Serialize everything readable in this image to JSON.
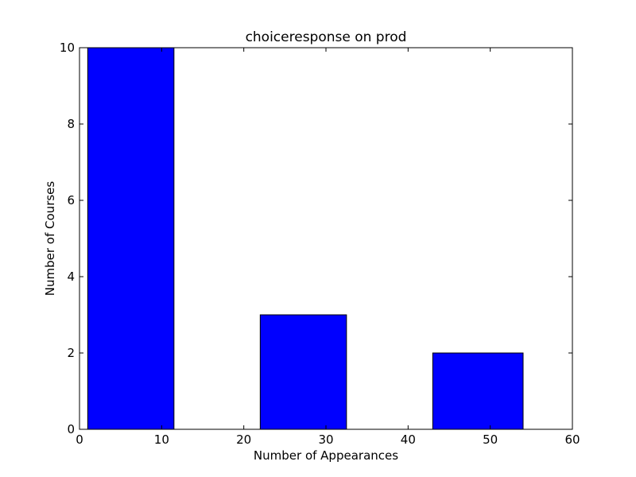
{
  "chart_data": {
    "type": "bar",
    "title": "choiceresponse on prod",
    "xlabel": "Number of Appearances",
    "ylabel": "Number of Courses",
    "xlim": [
      0,
      60
    ],
    "ylim": [
      0,
      10
    ],
    "xticks": [
      "0",
      "10",
      "20",
      "30",
      "40",
      "50",
      "60"
    ],
    "yticks": [
      "0",
      "2",
      "4",
      "6",
      "8",
      "10"
    ],
    "bars": [
      {
        "x_start": 1,
        "x_end": 11.5,
        "value": 10
      },
      {
        "x_start": 22,
        "x_end": 32.5,
        "value": 3
      },
      {
        "x_start": 43,
        "x_end": 54,
        "value": 2
      }
    ],
    "bar_color": "#0000ff",
    "grid": false
  }
}
